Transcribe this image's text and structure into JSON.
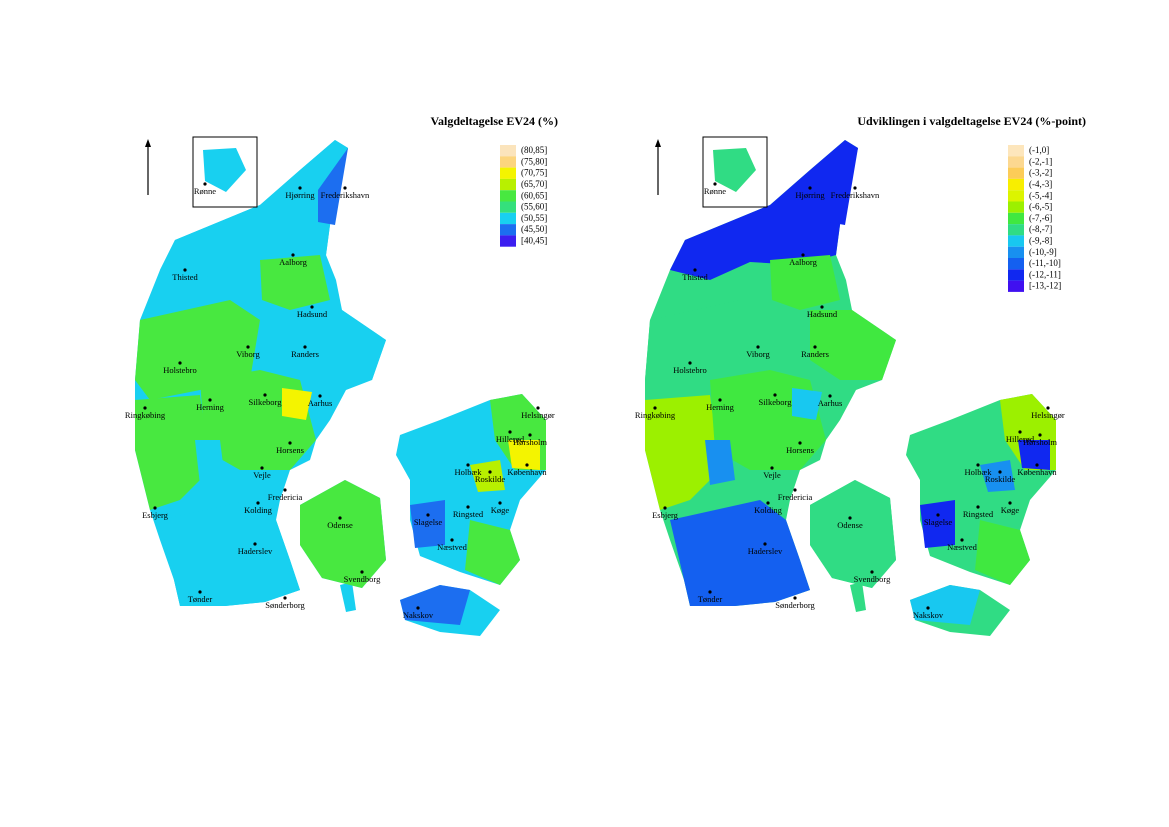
{
  "maps": [
    {
      "title": "Valgdeltagelse EV24 (%)",
      "legend": [
        {
          "label": "(80,85]",
          "color": "#fbe4bc"
        },
        {
          "label": "(75,80]",
          "color": "#fcd57e"
        },
        {
          "label": "(70,75]",
          "color": "#f4f400"
        },
        {
          "label": "(65,70]",
          "color": "#b8f000"
        },
        {
          "label": "(60,65]",
          "color": "#48e840"
        },
        {
          "label": "(55,60]",
          "color": "#34e07c"
        },
        {
          "label": "(50,55]",
          "color": "#18d0f0"
        },
        {
          "label": "(45,50]",
          "color": "#1c6ef0"
        },
        {
          "label": "[40,45]",
          "color": "#3c1ef0"
        }
      ],
      "cities": [
        "Rønne",
        "Hjørring",
        "Frederikshavn",
        "Thisted",
        "Aalborg",
        "Hadsund",
        "Viborg",
        "Randers",
        "Holstebro",
        "Silkeborg",
        "Aarhus",
        "Herning",
        "Ringkøbing",
        "Horsens",
        "Vejle",
        "Fredericia",
        "Kolding",
        "Esbjerg",
        "Odense",
        "Haderslev",
        "Tønder",
        "Sønderborg",
        "Svendborg",
        "Nakskov",
        "Slagelse",
        "Ringsted",
        "Næstved",
        "Køge",
        "Holbæk",
        "Roskilde",
        "København",
        "Hillerød",
        "Hørsholm",
        "Helsingør"
      ]
    },
    {
      "title": "Udviklingen i valgdeltagelse EV24 (%-point)",
      "legend": [
        {
          "label": "(-1,0]",
          "color": "#fde6bc"
        },
        {
          "label": "(-2,-1]",
          "color": "#fcd890"
        },
        {
          "label": "(-3,-2]",
          "color": "#fccc58"
        },
        {
          "label": "(-4,-3]",
          "color": "#f8ee00"
        },
        {
          "label": "(-5,-4]",
          "color": "#dcf400"
        },
        {
          "label": "(-6,-5]",
          "color": "#9cf000"
        },
        {
          "label": "(-7,-6]",
          "color": "#40e840"
        },
        {
          "label": "(-8,-7]",
          "color": "#30dc84"
        },
        {
          "label": "(-9,-8]",
          "color": "#18c8f0"
        },
        {
          "label": "(-10,-9]",
          "color": "#1890f0"
        },
        {
          "label": "(-11,-10]",
          "color": "#1460f0"
        },
        {
          "label": "(-12,-11]",
          "color": "#1028f0"
        },
        {
          "label": "[-13,-12]",
          "color": "#4010f0"
        }
      ],
      "cities": [
        "Rønne",
        "Hjørring",
        "Frederikshavn",
        "Thisted",
        "Aalborg",
        "Hadsund",
        "Viborg",
        "Randers",
        "Holstebro",
        "Silkeborg",
        "Aarhus",
        "Herning",
        "Ringkøbing",
        "Horsens",
        "Vejle",
        "Fredericia",
        "Kolding",
        "Esbjerg",
        "Odense",
        "Haderslev",
        "Tønder",
        "Sønderborg",
        "Svendborg",
        "Nakskov",
        "Slagelse",
        "Ringsted",
        "Næstved",
        "Køge",
        "Holbæk",
        "Roskilde",
        "København",
        "Hillerød",
        "Hørsholm",
        "Helsingør"
      ]
    }
  ]
}
